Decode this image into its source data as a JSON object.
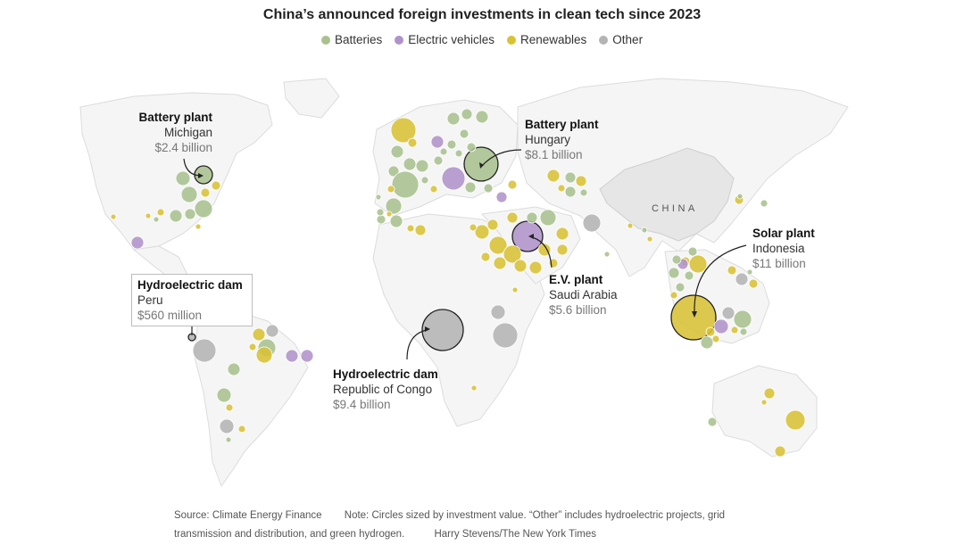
{
  "title": "China’s announced foreign investments in clean tech since 2023",
  "legend": [
    {
      "label": "Batteries",
      "color": "#a9c18f"
    },
    {
      "label": "Electric vehicles",
      "color": "#b093c9"
    },
    {
      "label": "Renewables",
      "color": "#d8c235"
    },
    {
      "label": "Other",
      "color": "#b4b4b4"
    }
  ],
  "country_label": "CHINA",
  "annotations": {
    "michigan": {
      "type": "Battery plant",
      "place": "Michigan",
      "value": "$2.4 billion"
    },
    "hungary": {
      "type": "Battery plant",
      "place": "Hungary",
      "value": "$8.1 billion"
    },
    "peru": {
      "type": "Hydroelectric dam",
      "place": "Peru",
      "value": "$560 million"
    },
    "saudi": {
      "type": "E.V. plant",
      "place": "Saudi Arabia",
      "value": "$5.6 billion"
    },
    "congo": {
      "type": "Hydroelectric dam",
      "place": "Republic of Congo",
      "value": "$9.4 billion"
    },
    "indonesia": {
      "type": "Solar plant",
      "place": "Indonesia",
      "value": "$11 billion"
    }
  },
  "footer": {
    "source": "Source: Climate Energy Finance",
    "note": "Note: Circles sized by investment value. “Other” includes hydroelectric projects, grid transmission and distribution, and green hydrogen.",
    "credit": "Harry Stevens/The New York Times"
  }
}
